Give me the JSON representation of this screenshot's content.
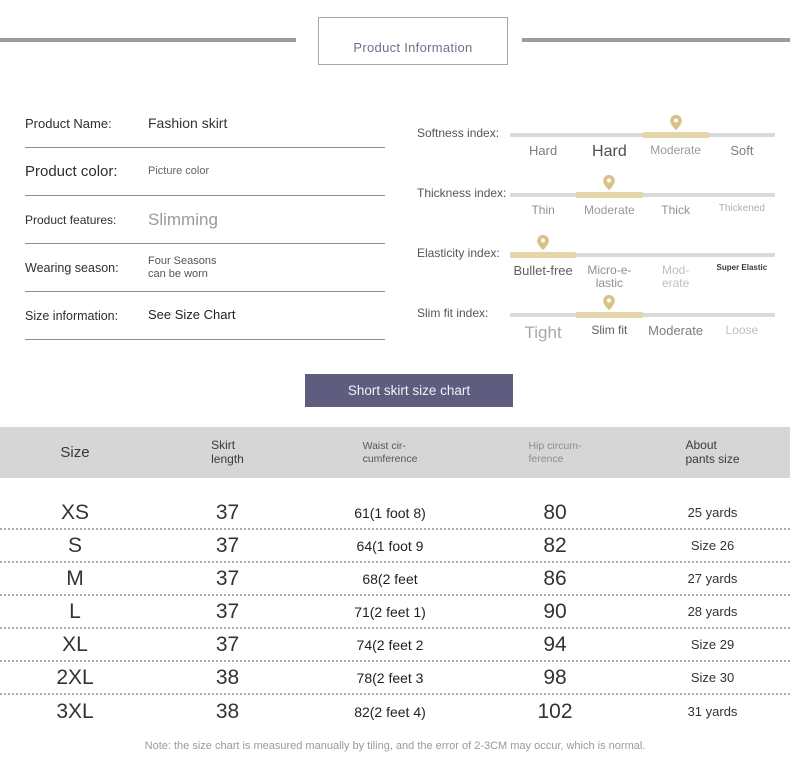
{
  "colors": {
    "accent_tan": "#D9C18C",
    "track_gray": "#DADADA",
    "button_purple": "#5E5C7F",
    "table_header_bg": "#D6D6D6"
  },
  "header": {
    "title": "Product Information"
  },
  "product_info": {
    "rows": [
      {
        "label": "Product Name:",
        "value": "Fashion skirt"
      },
      {
        "label": "Product color:",
        "value": "Picture color"
      },
      {
        "label": "Product features:",
        "value": "Slimming"
      },
      {
        "label": "Wearing season:",
        "value": "Four Seasons\ncan be worn"
      },
      {
        "label": "Size information:",
        "value": "See Size Chart"
      }
    ]
  },
  "indexes": {
    "rows": [
      {
        "label": "Softness index:",
        "active_segment": 3,
        "options": [
          "Hard",
          "Hard",
          "Moderate",
          "Soft"
        ]
      },
      {
        "label": "Thickness index:",
        "active_segment": 2,
        "options": [
          "Thin",
          "Moderate",
          "Thick",
          "Thickened"
        ]
      },
      {
        "label": "Elasticity index:",
        "active_segment": 1,
        "options": [
          "Bullet-free",
          "Micro-e-\nlastic",
          "Mod-\nerate",
          "Super Elastic"
        ]
      },
      {
        "label": "Slim fit index:",
        "active_segment": 2,
        "options": [
          "Tight",
          "Slim fit",
          "Moderate",
          "Loose"
        ]
      }
    ]
  },
  "size_chart": {
    "button_label": "Short skirt size chart",
    "columns": [
      {
        "l1": "Size",
        "l2": ""
      },
      {
        "l1": "Skirt",
        "l2": "length"
      },
      {
        "l1": "Waist cir-",
        "l2": "cumference"
      },
      {
        "l1": "Hip circum-",
        "l2": "ference"
      },
      {
        "l1": "About",
        "l2": "pants size"
      }
    ],
    "rows": [
      [
        "XS",
        "37",
        "61(1 foot 8)",
        "80",
        "25 yards"
      ],
      [
        "S",
        "37",
        "64(1 foot 9",
        "82",
        "Size 26"
      ],
      [
        "M",
        "37",
        "68(2 feet",
        "86",
        "27 yards"
      ],
      [
        "L",
        "37",
        "71(2 feet 1)",
        "90",
        "28 yards"
      ],
      [
        "XL",
        "37",
        "74(2 feet 2",
        "94",
        "Size 29"
      ],
      [
        "2XL",
        "38",
        "78(2 feet 3",
        "98",
        "Size 30"
      ],
      [
        "3XL",
        "38",
        "82(2 feet 4)",
        "102",
        "31 yards"
      ]
    ],
    "note": "Note: the size chart is measured manually by tiling, and the error of 2-3CM may occur, which is normal."
  }
}
